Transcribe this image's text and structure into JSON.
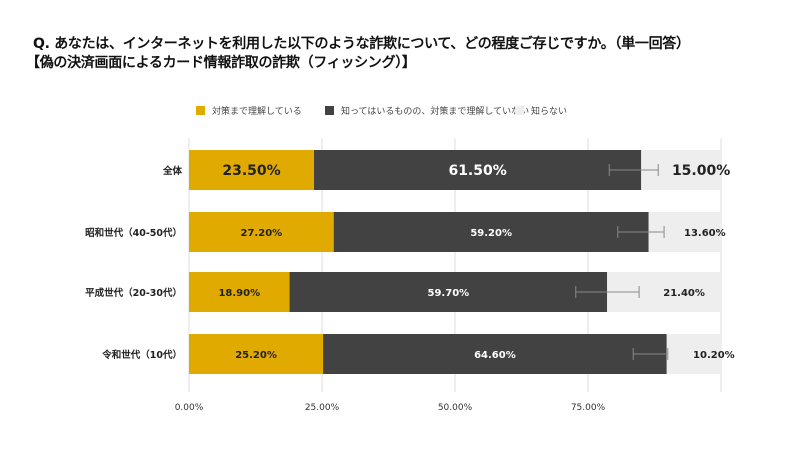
{
  "chart_data": {
    "type": "bar",
    "stacked": true,
    "orientation": "horizontal",
    "title": "Q. あなたは、インターネットを利用した以下のような詐欺について、どの程度ご存じですか。（単一回答）",
    "subtitle": "【偽の決済画面によるカード情報詐取の詐欺（フィッシング）】",
    "categories": [
      "全体",
      "昭和世代（40-50代）",
      "平成世代（20-30代）",
      "令和世代（10代）"
    ],
    "series": [
      {
        "name": "対策まで理解している",
        "color": "#e0aa00",
        "values": [
          23.5,
          27.2,
          18.9,
          25.2
        ],
        "labels": [
          "23.50%",
          "27.20%",
          "18.90%",
          "25.20%"
        ]
      },
      {
        "name": "知ってはいるものの、対策まで理解していない",
        "color": "#424242",
        "values": [
          61.5,
          59.2,
          59.7,
          64.6
        ],
        "labels": [
          "61.50%",
          "59.20%",
          "59.70%",
          "64.60%"
        ]
      },
      {
        "name": "知らない",
        "color": "#eeeeee",
        "values": [
          15.0,
          13.6,
          21.4,
          10.2
        ],
        "labels": [
          "15.00%",
          "13.60%",
          "21.40%",
          "10.20%"
        ]
      }
    ],
    "error_bars": [
      [
        79,
        88.2
      ],
      [
        80.6,
        89.3
      ],
      [
        72.7,
        84.6
      ],
      [
        83.5,
        90
      ]
    ],
    "xlim": [
      0,
      100
    ],
    "xticks": [
      0,
      25,
      50,
      75
    ],
    "xtick_labels": [
      "0.00%",
      "25.00%",
      "50.00%",
      "75.00%"
    ],
    "grid": true,
    "legend": "top"
  }
}
